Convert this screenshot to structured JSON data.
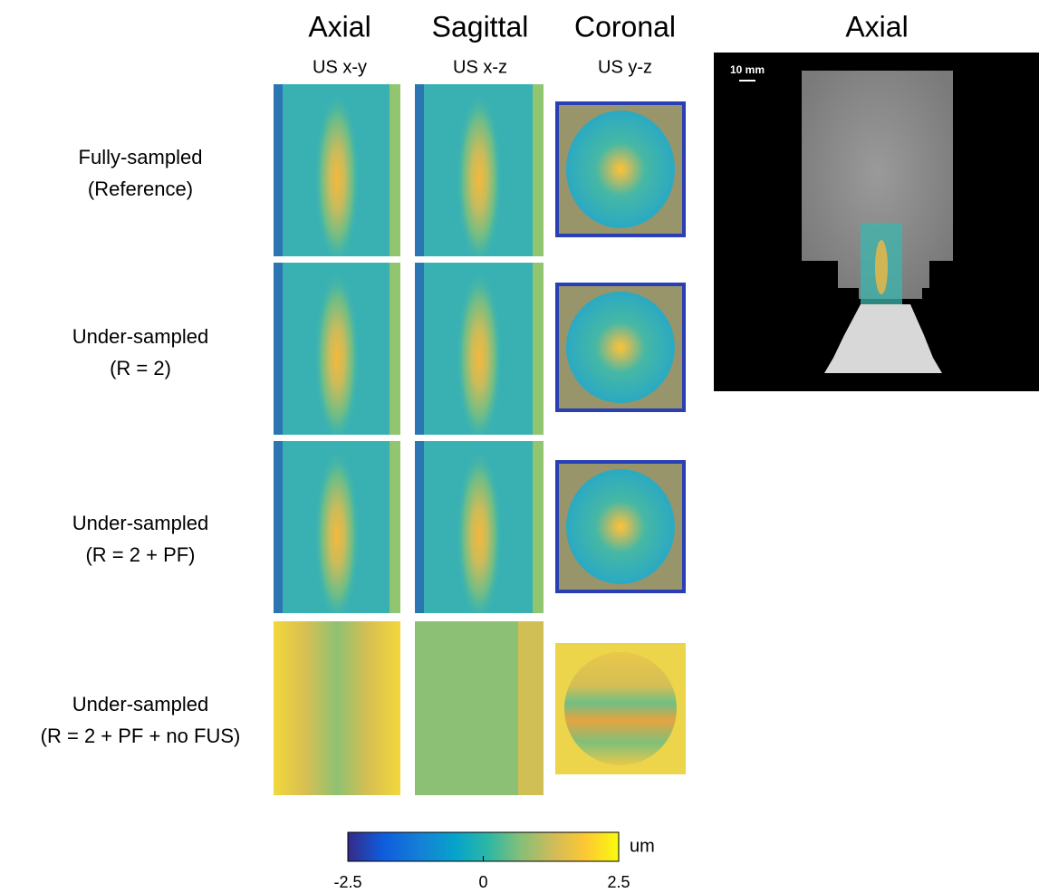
{
  "columns": [
    {
      "title": "Axial",
      "subtitle": "US x-y"
    },
    {
      "title": "Sagittal",
      "subtitle": "US x-z"
    },
    {
      "title": "Coronal",
      "subtitle": "US y-z"
    }
  ],
  "rows": [
    {
      "lines": [
        "Fully-sampled",
        "(Reference)"
      ]
    },
    {
      "lines": [
        "Under-sampled",
        "(R = 2)"
      ]
    },
    {
      "lines": [
        "Under-sampled",
        "(R = 2 + PF)"
      ]
    },
    {
      "lines": [
        "Under-sampled",
        "(R = 2 + PF + no FUS)"
      ]
    }
  ],
  "reference_panel": {
    "title": "Axial",
    "scale_bar": "10 mm"
  },
  "colorbar": {
    "lim": [
      -2.5,
      2.5
    ],
    "ticks": [
      -2.5,
      0,
      2.5
    ],
    "unit": "um"
  }
}
